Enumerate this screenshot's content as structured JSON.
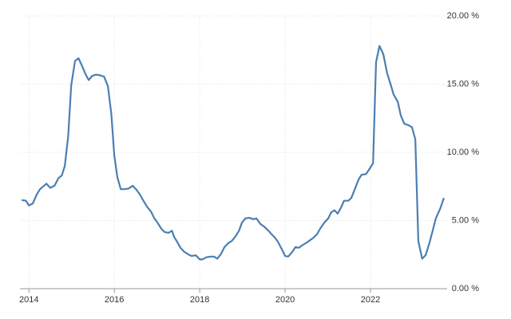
{
  "chart_data": {
    "type": "line",
    "color": "#4a7fb3",
    "grid": true,
    "x": [
      2013.83,
      2013.93,
      2014.0,
      2014.09,
      2014.19,
      2014.26,
      2014.41,
      2014.5,
      2014.6,
      2014.69,
      2014.77,
      2014.84,
      2014.92,
      2014.99,
      2015.08,
      2015.16,
      2015.25,
      2015.33,
      2015.4,
      2015.48,
      2015.57,
      2015.66,
      2015.76,
      2015.85,
      2015.93,
      2016.0,
      2016.07,
      2016.15,
      2016.24,
      2016.34,
      2016.43,
      2016.52,
      2016.6,
      2016.69,
      2016.77,
      2016.86,
      2016.93,
      2017.01,
      2017.1,
      2017.18,
      2017.27,
      2017.35,
      2017.4,
      2017.46,
      2017.55,
      2017.64,
      2017.74,
      2017.81,
      2017.91,
      2018.0,
      2018.07,
      2018.15,
      2018.24,
      2018.34,
      2018.41,
      2018.5,
      2018.58,
      2018.67,
      2018.75,
      2018.84,
      2018.92,
      2018.99,
      2019.07,
      2019.16,
      2019.25,
      2019.33,
      2019.42,
      2019.51,
      2019.61,
      2019.68,
      2019.76,
      2019.83,
      2019.93,
      2020.0,
      2020.07,
      2020.17,
      2020.24,
      2020.32,
      2020.41,
      2020.49,
      2020.58,
      2020.65,
      2020.75,
      2020.82,
      2020.92,
      2021.01,
      2021.08,
      2021.16,
      2021.23,
      2021.31,
      2021.38,
      2021.48,
      2021.55,
      2021.64,
      2021.72,
      2021.79,
      2021.89,
      2021.96,
      2022.06,
      2022.13,
      2022.21,
      2022.3,
      2022.39,
      2022.47,
      2022.54,
      2022.64,
      2022.71,
      2022.79,
      2022.88,
      2022.97,
      2023.05,
      2023.12,
      2023.21,
      2023.29,
      2023.38,
      2023.46,
      2023.53,
      2023.63,
      2023.72
    ],
    "values": [
      6.5,
      6.45,
      6.1,
      6.25,
      6.95,
      7.3,
      7.7,
      7.4,
      7.55,
      8.1,
      8.3,
      9.0,
      11.2,
      14.9,
      16.7,
      16.9,
      16.3,
      15.7,
      15.3,
      15.6,
      15.7,
      15.65,
      15.55,
      14.85,
      12.8,
      9.75,
      8.2,
      7.3,
      7.3,
      7.35,
      7.55,
      7.25,
      6.9,
      6.4,
      6.0,
      5.65,
      5.2,
      4.85,
      4.4,
      4.15,
      4.1,
      4.25,
      3.8,
      3.5,
      3.0,
      2.7,
      2.5,
      2.4,
      2.45,
      2.15,
      2.15,
      2.3,
      2.35,
      2.35,
      2.2,
      2.55,
      3.05,
      3.35,
      3.5,
      3.85,
      4.25,
      4.85,
      5.15,
      5.2,
      5.1,
      5.15,
      4.75,
      4.55,
      4.25,
      4.0,
      3.75,
      3.45,
      2.85,
      2.4,
      2.35,
      2.7,
      3.05,
      3.0,
      3.2,
      3.35,
      3.55,
      3.7,
      4.0,
      4.4,
      4.85,
      5.15,
      5.6,
      5.75,
      5.5,
      5.95,
      6.45,
      6.45,
      6.65,
      7.35,
      8.0,
      8.35,
      8.4,
      8.7,
      9.2,
      16.6,
      17.8,
      17.2,
      15.8,
      15.0,
      14.25,
      13.7,
      12.7,
      12.1,
      12.0,
      11.85,
      10.95,
      3.5,
      2.2,
      2.45,
      3.35,
      4.3,
      5.15,
      5.85,
      6.65
    ],
    "xlim": [
      2013.79,
      2023.72
    ],
    "xticks": [
      2014,
      2016,
      2018,
      2020,
      2022
    ],
    "ylim": [
      0,
      20
    ],
    "yticks": [
      {
        "value": 0,
        "label": "0.00 %"
      },
      {
        "value": 5,
        "label": "5.00 %"
      },
      {
        "value": 10,
        "label": "10.00 %"
      },
      {
        "value": 15,
        "label": "15.00 %"
      },
      {
        "value": 20,
        "label": "20.00 %"
      }
    ]
  }
}
